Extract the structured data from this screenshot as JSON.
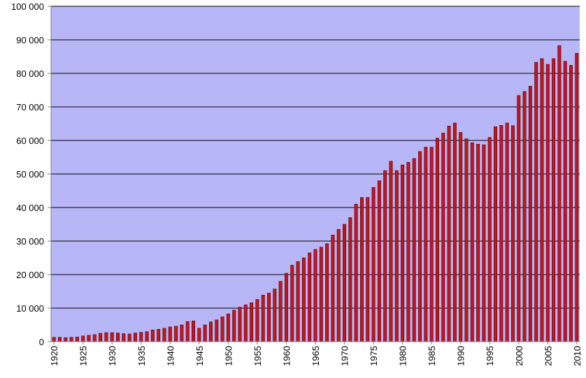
{
  "chart_data": {
    "type": "bar",
    "title": "",
    "xlabel": "",
    "ylabel": "",
    "ylim": [
      0,
      100000
    ],
    "grid": true,
    "legend": "none",
    "colors": {
      "plot_background": "#B7B7F7",
      "bar_fill": "#C0171F",
      "bar_edge": "#5A0000",
      "gridline": "#000000",
      "axis": "#808080"
    },
    "y_ticks": [
      {
        "value": 0,
        "label": "0"
      },
      {
        "value": 10000,
        "label": "10 000"
      },
      {
        "value": 20000,
        "label": "20 000"
      },
      {
        "value": 30000,
        "label": "30 000"
      },
      {
        "value": 40000,
        "label": "40 000"
      },
      {
        "value": 50000,
        "label": "50 000"
      },
      {
        "value": 60000,
        "label": "60 000"
      },
      {
        "value": 70000,
        "label": "70 000"
      },
      {
        "value": 80000,
        "label": "80 000"
      },
      {
        "value": 90000,
        "label": "90 000"
      },
      {
        "value": 100000,
        "label": "100 000"
      }
    ],
    "x_tick_labels": [
      "1920",
      "1925",
      "1930",
      "1935",
      "1940",
      "1945",
      "1950",
      "1955",
      "1960",
      "1965",
      "1970",
      "1975",
      "1980",
      "1985",
      "1990",
      "1995",
      "2000",
      "2005",
      "2010"
    ],
    "categories": [
      1920,
      1921,
      1922,
      1923,
      1924,
      1925,
      1926,
      1927,
      1928,
      1929,
      1930,
      1931,
      1932,
      1933,
      1934,
      1935,
      1936,
      1937,
      1938,
      1939,
      1940,
      1941,
      1942,
      1943,
      1944,
      1945,
      1946,
      1947,
      1948,
      1949,
      1950,
      1951,
      1952,
      1953,
      1954,
      1955,
      1956,
      1957,
      1958,
      1959,
      1960,
      1961,
      1962,
      1963,
      1964,
      1965,
      1966,
      1967,
      1968,
      1969,
      1970,
      1971,
      1972,
      1973,
      1974,
      1975,
      1976,
      1977,
      1978,
      1979,
      1980,
      1981,
      1982,
      1983,
      1984,
      1985,
      1986,
      1987,
      1988,
      1989,
      1990,
      1991,
      1992,
      1993,
      1994,
      1995,
      1996,
      1997,
      1998,
      1999,
      2000,
      2001,
      2002,
      2003,
      2004,
      2005,
      2006,
      2007,
      2008,
      2009,
      2010
    ],
    "values": [
      1300,
      1300,
      1200,
      1300,
      1400,
      1700,
      1900,
      2100,
      2500,
      2700,
      2700,
      2600,
      2400,
      2300,
      2600,
      2800,
      3000,
      3500,
      3700,
      4000,
      4400,
      4600,
      5000,
      6000,
      6200,
      4000,
      5000,
      5900,
      6500,
      7400,
      8300,
      9400,
      10300,
      11000,
      11600,
      12600,
      13900,
      14500,
      15700,
      18000,
      20400,
      22800,
      23900,
      25000,
      26500,
      27500,
      28200,
      29200,
      31800,
      33500,
      35000,
      37000,
      41000,
      43000,
      43000,
      46000,
      48000,
      51000,
      53800,
      51000,
      52700,
      53500,
      54600,
      56700,
      58000,
      58000,
      60700,
      62200,
      64300,
      65200,
      62400,
      60500,
      59300,
      58900,
      58700,
      60900,
      64100,
      64500,
      65200,
      64400,
      73400,
      74600,
      76200,
      83300,
      84400,
      82700,
      84400,
      88300,
      83600,
      82400,
      86000
    ]
  }
}
